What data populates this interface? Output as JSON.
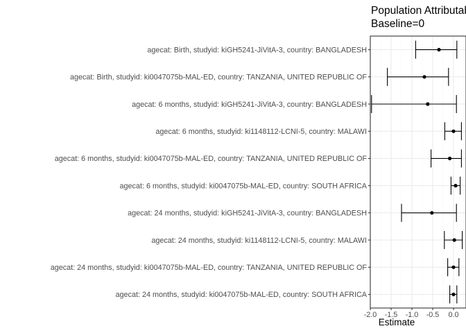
{
  "chart_data": {
    "type": "forest",
    "title_lines": [
      "Population Attributable Risk",
      "Baseline=0"
    ],
    "xlabel": "Estimate",
    "ylabel": "",
    "xlim": [
      -2.0,
      0.3
    ],
    "x_ticks": [
      -2.0,
      -1.5,
      -1.0,
      -0.5,
      0.0
    ],
    "x_tick_labels": [
      "-2.0",
      "-1.5",
      "-1.0",
      "-0.5",
      "0.0"
    ],
    "grid": true,
    "legend": "none",
    "colors": {
      "point": "#000000",
      "grid_major": "#ebebeb",
      "grid_minor": "#f5f5f5",
      "panel_border": "#333333",
      "text": "#4d4d4d"
    },
    "categories": [
      "agecat: Birth, studyid: kiGH5241-JiVitA-3, country: BANGLADESH",
      "agecat: Birth, studyid: ki0047075b-MAL-ED, country: TANZANIA, UNITED REPUBLIC OF",
      "agecat: 6 months, studyid: kiGH5241-JiVitA-3, country: BANGLADESH",
      "agecat: 6 months, studyid: ki1148112-LCNI-5, country: MALAWI",
      "agecat: 6 months, studyid: ki0047075b-MAL-ED, country: TANZANIA, UNITED REPUBLIC OF",
      "agecat: 6 months, studyid: ki0047075b-MAL-ED, country: SOUTH AFRICA",
      "agecat: 24 months, studyid: kiGH5241-JiVitA-3, country: BANGLADESH",
      "agecat: 24 months, studyid: ki1148112-LCNI-5, country: MALAWI",
      "agecat: 24 months, studyid: ki0047075b-MAL-ED, country: TANZANIA, UNITED REPUBLIC OF",
      "agecat: 24 months, studyid: ki0047075b-MAL-ED, country: SOUTH AFRICA"
    ],
    "estimate": [
      -0.35,
      -0.7,
      -0.62,
      0.0,
      -0.09,
      0.05,
      -0.52,
      0.02,
      0.0,
      0.0
    ],
    "lower": [
      -0.91,
      -1.59,
      -1.97,
      -0.21,
      -0.54,
      -0.06,
      -1.25,
      -0.22,
      -0.14,
      -0.09
    ],
    "upper": [
      0.08,
      -0.12,
      0.07,
      0.19,
      0.19,
      0.16,
      0.07,
      0.21,
      0.13,
      0.08
    ]
  }
}
